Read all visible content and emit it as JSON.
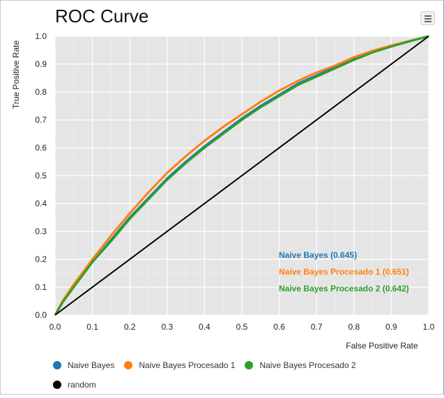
{
  "chart_data": {
    "type": "line",
    "title": "ROC Curve",
    "xlabel": "False Positive Rate",
    "ylabel": "True Positive Rate",
    "xlim": [
      0,
      1
    ],
    "ylim": [
      0,
      1
    ],
    "x_ticks": [
      "0.0",
      "0.1",
      "0.2",
      "0.3",
      "0.4",
      "0.5",
      "0.6",
      "0.7",
      "0.8",
      "0.9",
      "1.0"
    ],
    "y_ticks": [
      "0.0",
      "0.1",
      "0.2",
      "0.3",
      "0.4",
      "0.5",
      "0.6",
      "0.7",
      "0.8",
      "0.9",
      "1.0"
    ],
    "grid": true,
    "background_color": "#e5e5e5",
    "grid_color": "#ffffff",
    "legend_position": "bottom",
    "series": [
      {
        "name": "Naive Bayes",
        "auc_label": "Naive Bayes (0.645)",
        "color": "#1f77b4",
        "x": [
          0,
          0.02,
          0.05,
          0.1,
          0.15,
          0.2,
          0.25,
          0.3,
          0.35,
          0.4,
          0.45,
          0.5,
          0.55,
          0.6,
          0.65,
          0.7,
          0.75,
          0.8,
          0.85,
          0.9,
          0.95,
          1.0
        ],
        "y": [
          0,
          0.045,
          0.105,
          0.19,
          0.27,
          0.35,
          0.42,
          0.49,
          0.55,
          0.605,
          0.655,
          0.705,
          0.75,
          0.79,
          0.83,
          0.86,
          0.89,
          0.92,
          0.945,
          0.965,
          0.983,
          1.0
        ]
      },
      {
        "name": "Naive Bayes Procesado 1",
        "auc_label": "Naive Bayes Procesado 1 (0.651)",
        "color": "#ff7f0e",
        "x": [
          0,
          0.02,
          0.05,
          0.1,
          0.15,
          0.2,
          0.25,
          0.3,
          0.35,
          0.4,
          0.45,
          0.5,
          0.55,
          0.6,
          0.65,
          0.7,
          0.75,
          0.8,
          0.85,
          0.9,
          0.95,
          1.0
        ],
        "y": [
          0,
          0.05,
          0.11,
          0.2,
          0.285,
          0.365,
          0.44,
          0.51,
          0.57,
          0.625,
          0.675,
          0.72,
          0.765,
          0.805,
          0.84,
          0.87,
          0.895,
          0.925,
          0.948,
          0.967,
          0.984,
          1.0
        ]
      },
      {
        "name": "Naive Bayes Procesado 2",
        "auc_label": "Naive Bayes Procesado 2 (0.642)",
        "color": "#2ca02c",
        "x": [
          0,
          0.02,
          0.05,
          0.1,
          0.15,
          0.2,
          0.25,
          0.3,
          0.35,
          0.4,
          0.45,
          0.5,
          0.55,
          0.6,
          0.65,
          0.7,
          0.75,
          0.8,
          0.85,
          0.9,
          0.95,
          1.0
        ],
        "y": [
          0,
          0.045,
          0.1,
          0.19,
          0.265,
          0.345,
          0.415,
          0.485,
          0.545,
          0.6,
          0.65,
          0.7,
          0.745,
          0.785,
          0.825,
          0.855,
          0.885,
          0.915,
          0.942,
          0.963,
          0.982,
          1.0
        ]
      },
      {
        "name": "random",
        "color": "#000000",
        "x": [
          0,
          1
        ],
        "y": [
          0,
          1
        ]
      }
    ]
  }
}
